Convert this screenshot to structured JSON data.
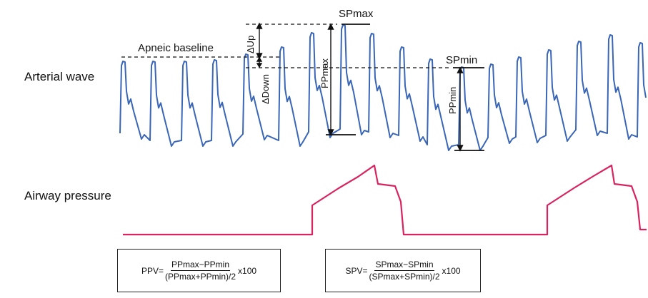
{
  "labels": {
    "arterial_wave": "Arterial wave",
    "airway_pressure": "Airway pressure",
    "apneic_baseline": "Apneic baseline",
    "sp_max": "SPmax",
    "sp_min": "SPmin",
    "pp_max": "PPmax",
    "pp_min": "PPmin",
    "delta_up": "ΔUp",
    "delta_down": "ΔDown"
  },
  "formulas": {
    "ppv": {
      "prefix": "PPV=",
      "numerator": "PPmax−PPmin",
      "denominator": "(PPmax+PPmin)/2",
      "suffix": "x100"
    },
    "spv": {
      "prefix": "SPV=",
      "numerator": "SPmax−SPmin",
      "denominator": "(SPmax+SPmin)/2",
      "suffix": "x100"
    }
  },
  "colors": {
    "arterial": "#3a66b8",
    "airway": "#d8235e",
    "annotation": "#111111"
  }
}
